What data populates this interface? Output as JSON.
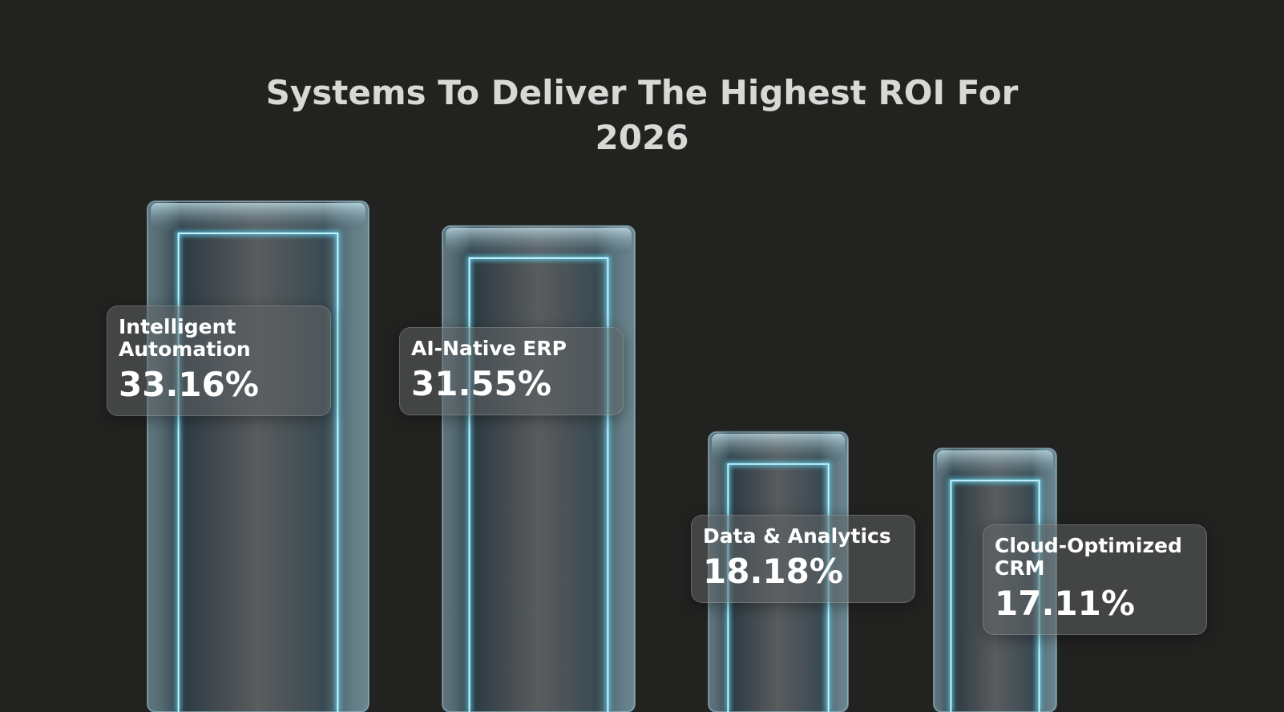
{
  "chart_data": {
    "type": "bar",
    "title": "Systems To Deliver The Highest ROI For 2026",
    "categories": [
      "Intelligent Automation",
      "AI-Native ERP",
      "Data & Analytics",
      "Cloud-Optimized CRM"
    ],
    "values": [
      33.16,
      31.55,
      18.18,
      17.11
    ],
    "value_labels": [
      "33.16%",
      "31.55%",
      "18.18%",
      "17.11%"
    ],
    "color": "#5fd6f2"
  }
}
